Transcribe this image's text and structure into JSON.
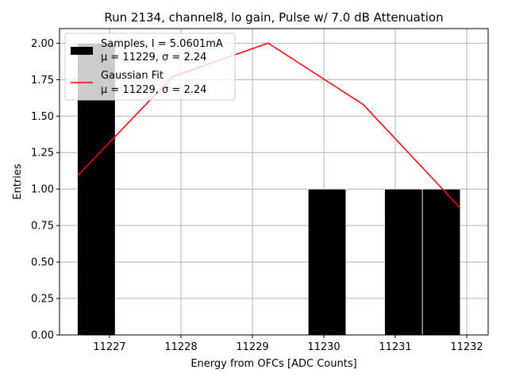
{
  "chart_data": {
    "type": "bar",
    "title": "Run 2134, channel8, lo gain, Pulse w/ 7.0 dB Attenuation",
    "xlabel": "Energy from OFCs [ADC Counts]",
    "ylabel": "Entries",
    "xlim": [
      11226.3,
      11232.3
    ],
    "ylim": [
      0,
      2.1
    ],
    "xticks": [
      11227,
      11228,
      11229,
      11230,
      11231,
      11232
    ],
    "yticks": [
      0.0,
      0.25,
      0.5,
      0.75,
      1.0,
      1.25,
      1.5,
      1.75,
      2.0
    ],
    "grid": true,
    "legend_position": "top-left",
    "colors": {
      "bars": "#000000",
      "fit": "#ff0000",
      "grid": "#b0b0b0"
    },
    "histogram": {
      "name": "Samples, I = 5.0601mA",
      "stats": "μ = 11229, σ = 2.24",
      "bins": [
        {
          "x0": 11226.55,
          "x1": 11227.08,
          "count": 2
        },
        {
          "x0": 11229.78,
          "x1": 11230.31,
          "count": 1
        },
        {
          "x0": 11230.85,
          "x1": 11231.38,
          "count": 1
        },
        {
          "x0": 11231.38,
          "x1": 11231.91,
          "count": 1
        }
      ]
    },
    "fit": {
      "name": "Gaussian Fit",
      "stats": "μ = 11229, σ = 2.24",
      "x": [
        11226.55,
        11227.88,
        11229.22,
        11230.55,
        11231.91
      ],
      "y": [
        1.09,
        1.77,
        2.0,
        1.58,
        0.87
      ]
    }
  }
}
